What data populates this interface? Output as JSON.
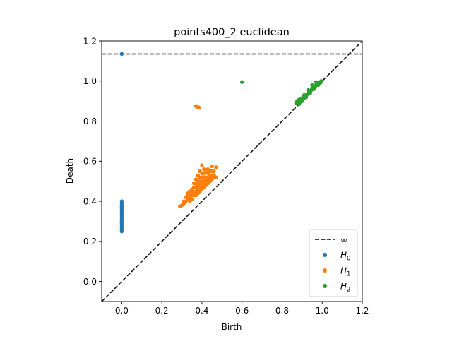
{
  "chart_data": {
    "type": "scatter",
    "title": "points400_2 euclidean",
    "xlabel": "Birth",
    "ylabel": "Death",
    "xlim": [
      -0.1,
      1.2
    ],
    "ylim": [
      -0.1,
      1.2
    ],
    "xticks": [
      "0.0",
      "0.2",
      "0.4",
      "0.6",
      "0.8",
      "1.0",
      "1.2"
    ],
    "yticks": [
      "0.0",
      "0.2",
      "0.4",
      "0.6",
      "0.8",
      "1.0",
      "1.2"
    ],
    "infinity_level": 1.135,
    "grid": false,
    "legend_position": "bottom-right",
    "legend": [
      {
        "label": "∞",
        "style": "dashed-line",
        "color": "#000000"
      },
      {
        "label": "H",
        "sub": "0",
        "style": "dot",
        "color": "#1f77b4"
      },
      {
        "label": "H",
        "sub": "1",
        "style": "dot",
        "color": "#ff7f0e"
      },
      {
        "label": "H",
        "sub": "2",
        "style": "dot",
        "color": "#2ca02c"
      }
    ],
    "series": [
      {
        "name": "H0",
        "color": "#1f77b4",
        "points": [
          [
            0,
            1.135
          ],
          [
            0,
            0.25
          ],
          [
            0,
            0.26
          ],
          [
            0,
            0.27
          ],
          [
            0,
            0.28
          ],
          [
            0,
            0.29
          ],
          [
            0,
            0.3
          ],
          [
            0,
            0.31
          ],
          [
            0,
            0.32
          ],
          [
            0,
            0.33
          ],
          [
            0,
            0.34
          ],
          [
            0,
            0.35
          ],
          [
            0,
            0.36
          ],
          [
            0,
            0.37
          ],
          [
            0,
            0.38
          ],
          [
            0,
            0.39
          ],
          [
            0,
            0.4
          ]
        ]
      },
      {
        "name": "H1",
        "color": "#ff7f0e",
        "points": [
          [
            0.37,
            0.875
          ],
          [
            0.38,
            0.87
          ],
          [
            0.385,
            0.868
          ],
          [
            0.29,
            0.375
          ],
          [
            0.3,
            0.38
          ],
          [
            0.31,
            0.39
          ],
          [
            0.32,
            0.4
          ],
          [
            0.33,
            0.41
          ],
          [
            0.34,
            0.42
          ],
          [
            0.35,
            0.43
          ],
          [
            0.36,
            0.44
          ],
          [
            0.37,
            0.45
          ],
          [
            0.38,
            0.46
          ],
          [
            0.39,
            0.47
          ],
          [
            0.4,
            0.48
          ],
          [
            0.41,
            0.49
          ],
          [
            0.42,
            0.5
          ],
          [
            0.43,
            0.51
          ],
          [
            0.44,
            0.52
          ],
          [
            0.45,
            0.53
          ],
          [
            0.46,
            0.55
          ],
          [
            0.47,
            0.57
          ],
          [
            0.45,
            0.575
          ],
          [
            0.33,
            0.43
          ],
          [
            0.34,
            0.45
          ],
          [
            0.35,
            0.46
          ],
          [
            0.36,
            0.47
          ],
          [
            0.37,
            0.49
          ],
          [
            0.38,
            0.5
          ],
          [
            0.39,
            0.52
          ],
          [
            0.4,
            0.54
          ],
          [
            0.41,
            0.56
          ],
          [
            0.4,
            0.58
          ],
          [
            0.42,
            0.545
          ],
          [
            0.43,
            0.54
          ],
          [
            0.44,
            0.55
          ],
          [
            0.36,
            0.43
          ],
          [
            0.37,
            0.43
          ],
          [
            0.38,
            0.44
          ],
          [
            0.39,
            0.45
          ],
          [
            0.4,
            0.46
          ],
          [
            0.41,
            0.47
          ],
          [
            0.42,
            0.48
          ],
          [
            0.43,
            0.49
          ],
          [
            0.44,
            0.5
          ],
          [
            0.45,
            0.51
          ],
          [
            0.31,
            0.4
          ],
          [
            0.32,
            0.42
          ],
          [
            0.33,
            0.44
          ],
          [
            0.34,
            0.44
          ],
          [
            0.35,
            0.45
          ],
          [
            0.36,
            0.49
          ],
          [
            0.37,
            0.51
          ],
          [
            0.38,
            0.53
          ],
          [
            0.39,
            0.49
          ],
          [
            0.4,
            0.5
          ],
          [
            0.41,
            0.52
          ],
          [
            0.42,
            0.52
          ],
          [
            0.43,
            0.52
          ],
          [
            0.44,
            0.53
          ],
          [
            0.45,
            0.55
          ],
          [
            0.46,
            0.53
          ],
          [
            0.47,
            0.52
          ],
          [
            0.39,
            0.55
          ],
          [
            0.41,
            0.54
          ],
          [
            0.43,
            0.56
          ],
          [
            0.35,
            0.41
          ],
          [
            0.34,
            0.4
          ],
          [
            0.37,
            0.47
          ],
          [
            0.38,
            0.48
          ],
          [
            0.39,
            0.5
          ],
          [
            0.42,
            0.51
          ],
          [
            0.44,
            0.51
          ],
          [
            0.46,
            0.52
          ],
          [
            0.41,
            0.5
          ],
          [
            0.4,
            0.52
          ]
        ]
      },
      {
        "name": "H2",
        "color": "#2ca02c",
        "points": [
          [
            0.6,
            0.995
          ],
          [
            0.87,
            0.89
          ],
          [
            0.875,
            0.9
          ],
          [
            0.88,
            0.905
          ],
          [
            0.89,
            0.895
          ],
          [
            0.9,
            0.91
          ],
          [
            0.905,
            0.92
          ],
          [
            0.91,
            0.915
          ],
          [
            0.92,
            0.93
          ],
          [
            0.925,
            0.935
          ],
          [
            0.93,
            0.94
          ],
          [
            0.935,
            0.945
          ],
          [
            0.94,
            0.95
          ],
          [
            0.945,
            0.955
          ],
          [
            0.95,
            0.965
          ],
          [
            0.955,
            0.96
          ],
          [
            0.96,
            0.97
          ],
          [
            0.965,
            0.975
          ],
          [
            0.97,
            0.98
          ],
          [
            0.975,
            0.985
          ],
          [
            0.98,
            0.99
          ],
          [
            0.985,
            0.99
          ],
          [
            0.99,
            0.995
          ],
          [
            0.995,
            1.0
          ],
          [
            0.97,
            0.995
          ],
          [
            0.95,
            0.98
          ],
          [
            0.93,
            0.955
          ],
          [
            0.91,
            0.93
          ],
          [
            0.89,
            0.91
          ],
          [
            0.885,
            0.885
          ],
          [
            0.9,
            0.9
          ],
          [
            0.92,
            0.92
          ],
          [
            0.94,
            0.94
          ],
          [
            0.96,
            0.96
          ],
          [
            0.98,
            0.98
          ],
          [
            0.99,
            0.99
          ]
        ]
      }
    ]
  }
}
